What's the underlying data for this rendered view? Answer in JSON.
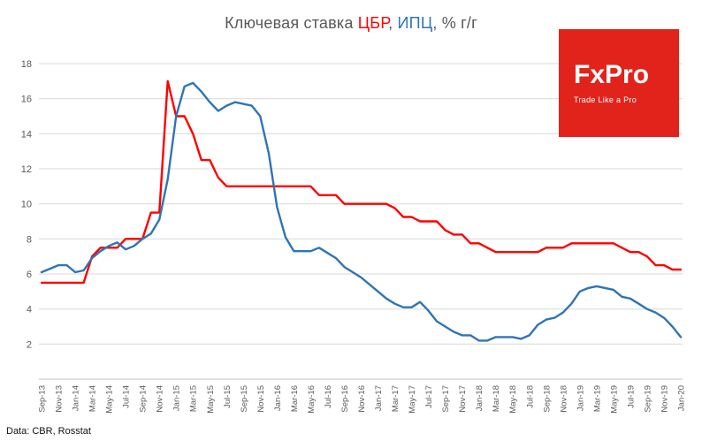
{
  "title": {
    "part1": "Ключевая ставка ",
    "cbr": "ЦБР",
    "comma": ", ",
    "ipc": "ИПЦ",
    "suffix": ", % г/г"
  },
  "logo": {
    "name": "FxPro",
    "tagline": "Trade Like a Pro"
  },
  "source": "Data: CBR, Rosstat",
  "colors": {
    "cbr_red": "#ff0000",
    "ipc_blue": "#2e75b6",
    "title_gray": "#595959",
    "axis_text": "#595959",
    "grid": "#d9d9d9",
    "axis_line": "#bfbfbf",
    "logo_red": "#e2231c"
  },
  "chart_data": {
    "type": "line",
    "title": "Ключевая ставка ЦБР, ИПЦ, % г/г",
    "xlabel": "",
    "ylabel": "",
    "ylim": [
      0,
      18
    ],
    "yticks": [
      2,
      4,
      6,
      8,
      10,
      12,
      14,
      16,
      18
    ],
    "grid": "horizontal",
    "legend": "inline-title-colors",
    "tick_every": 2,
    "x": [
      "Sep-13",
      "Oct-13",
      "Nov-13",
      "Dec-13",
      "Jan-14",
      "Feb-14",
      "Mar-14",
      "Apr-14",
      "May-14",
      "Jun-14",
      "Jul-14",
      "Aug-14",
      "Sep-14",
      "Oct-14",
      "Nov-14",
      "Dec-14",
      "Jan-15",
      "Feb-15",
      "Mar-15",
      "Apr-15",
      "May-15",
      "Jun-15",
      "Jul-15",
      "Aug-15",
      "Sep-15",
      "Oct-15",
      "Nov-15",
      "Dec-15",
      "Jan-16",
      "Feb-16",
      "Mar-16",
      "Apr-16",
      "May-16",
      "Jun-16",
      "Jul-16",
      "Aug-16",
      "Sep-16",
      "Oct-16",
      "Nov-16",
      "Dec-16",
      "Jan-17",
      "Feb-17",
      "Mar-17",
      "Apr-17",
      "May-17",
      "Jun-17",
      "Jul-17",
      "Aug-17",
      "Sep-17",
      "Oct-17",
      "Nov-17",
      "Dec-17",
      "Jan-18",
      "Feb-18",
      "Mar-18",
      "Apr-18",
      "May-18",
      "Jun-18",
      "Jul-18",
      "Aug-18",
      "Sep-18",
      "Oct-18",
      "Nov-18",
      "Dec-18",
      "Jan-19",
      "Feb-19",
      "Mar-19",
      "Apr-19",
      "May-19",
      "Jun-19",
      "Jul-19",
      "Aug-19",
      "Sep-19",
      "Oct-19",
      "Nov-19",
      "Dec-19",
      "Jan-20"
    ],
    "series": [
      {
        "id": "cbr-key-rate",
        "name": "ЦБР",
        "color_key": "cbr_red",
        "values": [
          5.5,
          5.5,
          5.5,
          5.5,
          5.5,
          5.5,
          7.0,
          7.5,
          7.5,
          7.5,
          8.0,
          8.0,
          8.0,
          9.5,
          9.5,
          17.0,
          15.0,
          15.0,
          14.0,
          12.5,
          12.5,
          11.5,
          11.0,
          11.0,
          11.0,
          11.0,
          11.0,
          11.0,
          11.0,
          11.0,
          11.0,
          11.0,
          11.0,
          10.5,
          10.5,
          10.5,
          10.0,
          10.0,
          10.0,
          10.0,
          10.0,
          10.0,
          9.75,
          9.25,
          9.25,
          9.0,
          9.0,
          9.0,
          8.5,
          8.25,
          8.25,
          7.75,
          7.75,
          7.5,
          7.25,
          7.25,
          7.25,
          7.25,
          7.25,
          7.25,
          7.5,
          7.5,
          7.5,
          7.75,
          7.75,
          7.75,
          7.75,
          7.75,
          7.75,
          7.5,
          7.25,
          7.25,
          7.0,
          6.5,
          6.5,
          6.25,
          6.25
        ]
      },
      {
        "id": "cpi-yoy",
        "name": "ИПЦ",
        "color_key": "ipc_blue",
        "values": [
          6.1,
          6.3,
          6.5,
          6.5,
          6.1,
          6.2,
          6.9,
          7.3,
          7.6,
          7.8,
          7.4,
          7.6,
          8.0,
          8.3,
          9.1,
          11.4,
          15.0,
          16.7,
          16.9,
          16.4,
          15.8,
          15.3,
          15.6,
          15.8,
          15.7,
          15.6,
          15.0,
          12.9,
          9.8,
          8.1,
          7.3,
          7.3,
          7.3,
          7.5,
          7.2,
          6.9,
          6.4,
          6.1,
          5.8,
          5.4,
          5.0,
          4.6,
          4.3,
          4.1,
          4.1,
          4.4,
          3.9,
          3.3,
          3.0,
          2.7,
          2.5,
          2.5,
          2.2,
          2.2,
          2.4,
          2.4,
          2.4,
          2.3,
          2.5,
          3.1,
          3.4,
          3.5,
          3.8,
          4.3,
          5.0,
          5.2,
          5.3,
          5.2,
          5.1,
          4.7,
          4.6,
          4.3,
          4.0,
          3.8,
          3.5,
          3.0,
          2.4
        ]
      }
    ]
  }
}
